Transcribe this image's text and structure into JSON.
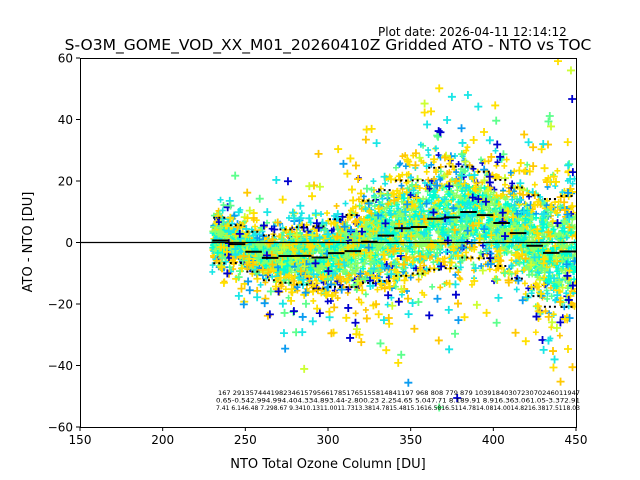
{
  "chart_data": {
    "type": "scatter",
    "plot_date": "Plot date: 2026-04-11 12:14:12",
    "title": "S-O3M_GOME_VOD_XX_M01_20260410Z Gridded ATO - NTO vs TOC",
    "xlabel": "NTO Total Ozone Column [DU]",
    "ylabel": "ATO - NTO [DU]",
    "xlim": [
      150,
      450
    ],
    "ylim": [
      -60,
      60
    ],
    "xticks": [
      "150",
      "200",
      "250",
      "300",
      "350",
      "400",
      "450"
    ],
    "yticks": [
      "60",
      "40",
      "20",
      "0",
      "−20",
      "−40",
      "−60"
    ],
    "grid": false,
    "colors": [
      "#0000cd",
      "#0a9bf0",
      "#19e6e6",
      "#00ffd0",
      "#5cff8c",
      "#8cff66",
      "#ccff33",
      "#ffe000",
      "#ffc800"
    ],
    "zero_line": 0,
    "bins": {
      "x": [
        235,
        245,
        255,
        265,
        275,
        285,
        295,
        305,
        315,
        325,
        335,
        345,
        355,
        365,
        375,
        385,
        395,
        405,
        415,
        425,
        435,
        445
      ],
      "mean": [
        0.65,
        -0.54,
        -2.99,
        -4.99,
        -4.4,
        -4.33,
        -4.89,
        -3.44,
        -2.8,
        0.23,
        2.25,
        4.65,
        5.04,
        7.71,
        8.18,
        9.91,
        8.91,
        6.36,
        3.06,
        -1.05,
        -3.37,
        -2.91
      ],
      "std": [
        7.41,
        6.14,
        6.48,
        7.29,
        8.67,
        9.34,
        10.13,
        11.0,
        11.73,
        13.38,
        14.78,
        15.48,
        15.16,
        16.58,
        16.51,
        14.78,
        14.08,
        14.0,
        14.82,
        16.38,
        17.51,
        18.03
      ]
    },
    "annotations": {
      "row_count": "167 2913574441982346157956617851765155814841197 968 808  779 879 1039184030723070246011947",
      "row_mean": "0.65-0.542.994.994.404.334.893.44-2.800.23 2.254.65 5.047.71 8.189.91 8.916.363.061.05-3.372.91",
      "row_std": "7.41 6.146.48 7.298.67 9.3410.1311.0011.7313.3814.7815.4815.1616.5816.5114.7814.0814.0014.8216.3817.5118.03"
    }
  }
}
